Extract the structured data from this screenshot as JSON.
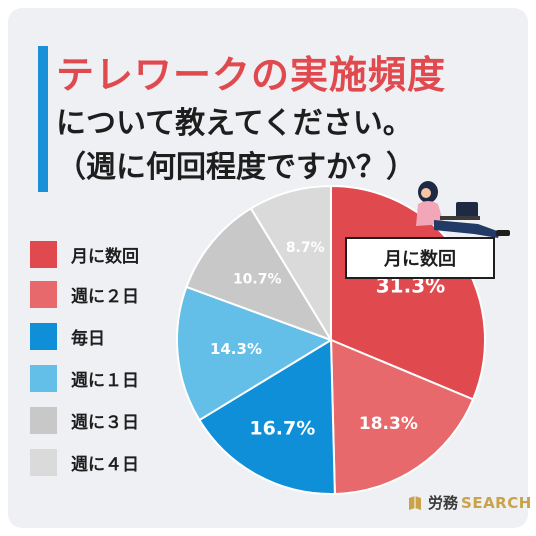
{
  "title": {
    "line1": "テレワークの実施頻度",
    "line2": "について教えてください。",
    "line3": "（週に何回程度ですか？）"
  },
  "callout": "月に数回",
  "brand": {
    "part1": "労務",
    "part2": "SEARCH"
  },
  "colors": {
    "accent": "#1a90d9",
    "title_red": "#e04a4e",
    "background": "#eef0f3"
  },
  "chart_data": {
    "type": "pie",
    "unit": "%",
    "start_angle_deg": 0,
    "direction": "clockwise",
    "slices": [
      {
        "label": "月に数回",
        "value": 31.3,
        "display": "31.3%",
        "color": "#e04a4e"
      },
      {
        "label": "週に２日",
        "value": 18.3,
        "display": "18.3%",
        "color": "#e8696c"
      },
      {
        "label": "毎日",
        "value": 16.7,
        "display": "16.7%",
        "color": "#0f8fd8"
      },
      {
        "label": "週に１日",
        "value": 14.3,
        "display": "14.3%",
        "color": "#63bfe8"
      },
      {
        "label": "週に３日",
        "value": 10.7,
        "display": "10.7%",
        "color": "#c8c8c8"
      },
      {
        "label": "週に４日",
        "value": 8.7,
        "display": "8.7%",
        "color": "#dadada"
      }
    ],
    "legend_position": "left"
  }
}
